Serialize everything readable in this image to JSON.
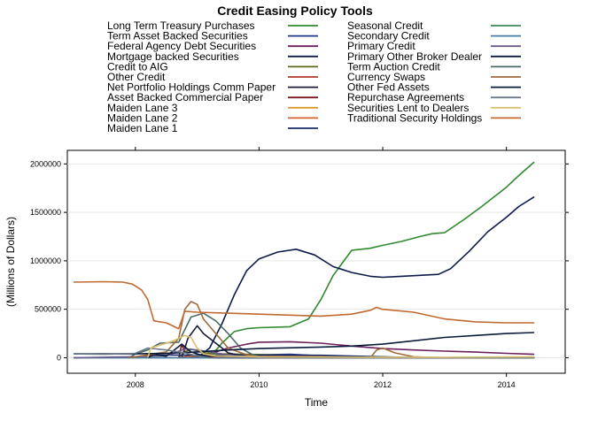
{
  "chart_data": {
    "type": "line",
    "title": "Credit Easing Policy Tools",
    "xlabel": "Time",
    "ylabel": "(Millions of Dollars)",
    "xlim": [
      2006.9,
      2014.95
    ],
    "ylim": [
      -160000,
      2140000
    ],
    "x_ticks": [
      2008,
      2010,
      2012,
      2014
    ],
    "x_tick_labels": [
      "2008",
      "2010",
      "2012",
      "2014"
    ],
    "y_ticks": [
      0,
      500000,
      1000000,
      1500000,
      2000000
    ],
    "y_tick_labels": [
      "0",
      "500000",
      "1000000",
      "1500000",
      "2000000"
    ],
    "grid": true,
    "legend_position": "top",
    "series": [
      {
        "name": "Long Term Treasury Purchases",
        "color": "#2f8a2f",
        "points": [
          [
            2009.2,
            0
          ],
          [
            2009.4,
            150000
          ],
          [
            2009.6,
            270000
          ],
          [
            2009.8,
            300000
          ],
          [
            2010.0,
            310000
          ],
          [
            2010.5,
            320000
          ],
          [
            2010.8,
            400000
          ],
          [
            2011.0,
            600000
          ],
          [
            2011.2,
            850000
          ],
          [
            2011.5,
            1110000
          ],
          [
            2011.8,
            1130000
          ],
          [
            2012.0,
            1160000
          ],
          [
            2012.3,
            1200000
          ],
          [
            2012.6,
            1250000
          ],
          [
            2012.8,
            1280000
          ],
          [
            2013.0,
            1290000
          ],
          [
            2013.3,
            1420000
          ],
          [
            2013.6,
            1560000
          ],
          [
            2014.0,
            1760000
          ],
          [
            2014.2,
            1880000
          ],
          [
            2014.45,
            2020000
          ]
        ]
      },
      {
        "name": "Term Asset Backed Securities",
        "color": "#1f3a8a",
        "points": [
          [
            2009.25,
            0
          ],
          [
            2009.5,
            15000
          ],
          [
            2010.0,
            30000
          ],
          [
            2010.5,
            35000
          ],
          [
            2011.0,
            20000
          ],
          [
            2011.5,
            10000
          ],
          [
            2012.0,
            5000
          ],
          [
            2013.0,
            1000
          ],
          [
            2014.45,
            0
          ]
        ]
      },
      {
        "name": "Federal Agency Debt Securities",
        "color": "#6b1f5e",
        "points": [
          [
            2008.9,
            0
          ],
          [
            2009.2,
            40000
          ],
          [
            2009.5,
            100000
          ],
          [
            2009.8,
            140000
          ],
          [
            2010.0,
            160000
          ],
          [
            2010.5,
            165000
          ],
          [
            2011.0,
            150000
          ],
          [
            2011.5,
            120000
          ],
          [
            2012.0,
            95000
          ],
          [
            2012.5,
            80000
          ],
          [
            2013.0,
            68000
          ],
          [
            2013.5,
            58000
          ],
          [
            2014.0,
            45000
          ],
          [
            2014.45,
            35000
          ]
        ]
      },
      {
        "name": "Mortgage backed Securities",
        "color": "#0d1a4a",
        "points": [
          [
            2009.0,
            0
          ],
          [
            2009.2,
            100000
          ],
          [
            2009.4,
            350000
          ],
          [
            2009.6,
            650000
          ],
          [
            2009.8,
            900000
          ],
          [
            2010.0,
            1020000
          ],
          [
            2010.3,
            1090000
          ],
          [
            2010.6,
            1120000
          ],
          [
            2010.9,
            1060000
          ],
          [
            2011.2,
            940000
          ],
          [
            2011.5,
            880000
          ],
          [
            2011.8,
            840000
          ],
          [
            2012.0,
            830000
          ],
          [
            2012.3,
            840000
          ],
          [
            2012.6,
            850000
          ],
          [
            2012.9,
            860000
          ],
          [
            2013.1,
            920000
          ],
          [
            2013.4,
            1100000
          ],
          [
            2013.7,
            1300000
          ],
          [
            2014.0,
            1450000
          ],
          [
            2014.2,
            1560000
          ],
          [
            2014.45,
            1660000
          ]
        ]
      },
      {
        "name": "Credit to AIG",
        "color": "#5a6b1f",
        "points": [
          [
            2008.7,
            0
          ],
          [
            2008.8,
            60000
          ],
          [
            2008.9,
            90000
          ],
          [
            2009.1,
            50000
          ],
          [
            2009.4,
            40000
          ],
          [
            2009.8,
            35000
          ],
          [
            2010.2,
            30000
          ],
          [
            2010.8,
            20000
          ],
          [
            2011.0,
            0
          ],
          [
            2014.45,
            0
          ]
        ]
      },
      {
        "name": "Other Credit",
        "color": "#b03a2a",
        "points": [
          [
            2008.75,
            0
          ],
          [
            2008.85,
            20000
          ],
          [
            2009.0,
            15000
          ],
          [
            2009.3,
            0
          ],
          [
            2014.45,
            0
          ]
        ]
      },
      {
        "name": "Net Portfolio Holdings Comm Paper",
        "color": "#1a1a3a",
        "points": [
          [
            2008.75,
            0
          ],
          [
            2008.85,
            200000
          ],
          [
            2009.0,
            330000
          ],
          [
            2009.1,
            250000
          ],
          [
            2009.3,
            150000
          ],
          [
            2009.5,
            50000
          ],
          [
            2009.8,
            10000
          ],
          [
            2010.0,
            0
          ],
          [
            2014.45,
            0
          ]
        ]
      },
      {
        "name": "Asset Backed Commercial Paper",
        "color": "#7a1a1a",
        "points": [
          [
            2008.7,
            0
          ],
          [
            2008.75,
            140000
          ],
          [
            2008.8,
            60000
          ],
          [
            2008.9,
            20000
          ],
          [
            2009.2,
            10000
          ],
          [
            2009.5,
            0
          ],
          [
            2014.45,
            0
          ]
        ]
      },
      {
        "name": "Maiden Lane 3",
        "color": "#d89a2a",
        "points": [
          [
            2008.85,
            0
          ],
          [
            2008.9,
            25000
          ],
          [
            2009.3,
            23000
          ],
          [
            2010.0,
            22000
          ],
          [
            2011.0,
            20000
          ],
          [
            2012.0,
            8000
          ],
          [
            2012.5,
            0
          ],
          [
            2014.45,
            0
          ]
        ]
      },
      {
        "name": "Maiden Lane 2",
        "color": "#d4622a",
        "points": [
          [
            2008.85,
            0
          ],
          [
            2008.9,
            20000
          ],
          [
            2009.5,
            17000
          ],
          [
            2010.5,
            15000
          ],
          [
            2011.5,
            10000
          ],
          [
            2012.0,
            3000
          ],
          [
            2012.3,
            0
          ],
          [
            2014.45,
            0
          ]
        ]
      },
      {
        "name": "Maiden Lane 1",
        "color": "#1a2a6a",
        "points": [
          [
            2008.2,
            0
          ],
          [
            2008.25,
            29000
          ],
          [
            2009.0,
            27000
          ],
          [
            2010.0,
            27000
          ],
          [
            2011.0,
            25000
          ],
          [
            2012.0,
            10000
          ],
          [
            2012.5,
            1500
          ],
          [
            2014.45,
            1500
          ]
        ]
      },
      {
        "name": "Seasonal Credit",
        "color": "#3a8a5a",
        "points": [
          [
            2007.0,
            0
          ],
          [
            2014.45,
            0
          ]
        ]
      },
      {
        "name": "Secondary Credit",
        "color": "#4a7aa8",
        "points": [
          [
            2007.0,
            0
          ],
          [
            2014.45,
            0
          ]
        ]
      },
      {
        "name": "Primary Credit",
        "color": "#6a5a8a",
        "points": [
          [
            2007.0,
            0
          ],
          [
            2007.9,
            10000
          ],
          [
            2008.2,
            15000
          ],
          [
            2008.5,
            20000
          ],
          [
            2008.8,
            90000
          ],
          [
            2009.0,
            80000
          ],
          [
            2009.3,
            50000
          ],
          [
            2009.6,
            20000
          ],
          [
            2010.0,
            5000
          ],
          [
            2010.3,
            0
          ],
          [
            2014.45,
            0
          ]
        ]
      },
      {
        "name": "Primary Other Broker Dealer",
        "color": "#0a1a3a",
        "points": [
          [
            2008.2,
            0
          ],
          [
            2008.3,
            35000
          ],
          [
            2008.5,
            15000
          ],
          [
            2008.75,
            140000
          ],
          [
            2008.9,
            60000
          ],
          [
            2009.1,
            20000
          ],
          [
            2009.3,
            0
          ],
          [
            2014.45,
            0
          ]
        ]
      },
      {
        "name": "Term Auction Credit",
        "color": "#4a6a6a",
        "points": [
          [
            2007.9,
            0
          ],
          [
            2008.0,
            40000
          ],
          [
            2008.2,
            80000
          ],
          [
            2008.4,
            150000
          ],
          [
            2008.7,
            160000
          ],
          [
            2008.9,
            420000
          ],
          [
            2009.1,
            460000
          ],
          [
            2009.3,
            380000
          ],
          [
            2009.5,
            250000
          ],
          [
            2009.7,
            100000
          ],
          [
            2009.9,
            30000
          ],
          [
            2010.1,
            0
          ],
          [
            2014.45,
            0
          ]
        ]
      },
      {
        "name": "Currency Swaps",
        "color": "#a06a3a",
        "points": [
          [
            2007.9,
            0
          ],
          [
            2008.1,
            20000
          ],
          [
            2008.5,
            60000
          ],
          [
            2008.7,
            200000
          ],
          [
            2008.8,
            500000
          ],
          [
            2008.9,
            580000
          ],
          [
            2009.0,
            550000
          ],
          [
            2009.1,
            400000
          ],
          [
            2009.3,
            250000
          ],
          [
            2009.5,
            100000
          ],
          [
            2009.8,
            30000
          ],
          [
            2010.1,
            0
          ],
          [
            2010.4,
            1000
          ],
          [
            2011.0,
            0
          ],
          [
            2011.8,
            1000
          ],
          [
            2011.9,
            80000
          ],
          [
            2012.0,
            100000
          ],
          [
            2012.2,
            50000
          ],
          [
            2012.5,
            10000
          ],
          [
            2013.0,
            0
          ],
          [
            2014.45,
            0
          ]
        ]
      },
      {
        "name": "Other Fed Assets",
        "color": "#0a1a3a",
        "points": [
          [
            2007.0,
            40000
          ],
          [
            2008.0,
            40000
          ],
          [
            2008.5,
            45000
          ],
          [
            2009.0,
            60000
          ],
          [
            2009.5,
            80000
          ],
          [
            2010.0,
            95000
          ],
          [
            2011.0,
            110000
          ],
          [
            2011.5,
            120000
          ],
          [
            2012.0,
            140000
          ],
          [
            2012.5,
            175000
          ],
          [
            2013.0,
            210000
          ],
          [
            2013.5,
            230000
          ],
          [
            2014.0,
            250000
          ],
          [
            2014.45,
            260000
          ]
        ]
      },
      {
        "name": "Repurchase Agreements",
        "color": "#6a7a8a",
        "points": [
          [
            2007.0,
            40000
          ],
          [
            2007.5,
            35000
          ],
          [
            2008.0,
            45000
          ],
          [
            2008.2,
            100000
          ],
          [
            2008.5,
            80000
          ],
          [
            2008.8,
            50000
          ],
          [
            2009.0,
            20000
          ],
          [
            2009.2,
            0
          ],
          [
            2014.45,
            0
          ]
        ]
      },
      {
        "name": "Securities Lent to Dealers",
        "color": "#d8c070",
        "points": [
          [
            2008.2,
            0
          ],
          [
            2008.25,
            100000
          ],
          [
            2008.4,
            130000
          ],
          [
            2008.6,
            170000
          ],
          [
            2008.8,
            230000
          ],
          [
            2008.9,
            210000
          ],
          [
            2009.0,
            100000
          ],
          [
            2009.1,
            40000
          ],
          [
            2009.3,
            20000
          ],
          [
            2009.6,
            15000
          ],
          [
            2010.0,
            10000
          ],
          [
            2011.0,
            8000
          ],
          [
            2012.0,
            5000
          ],
          [
            2013.0,
            5000
          ],
          [
            2014.45,
            10000
          ]
        ]
      },
      {
        "name": "Traditional Security Holdings",
        "color": "#c06a30",
        "points": [
          [
            2007.0,
            780000
          ],
          [
            2007.5,
            785000
          ],
          [
            2007.8,
            780000
          ],
          [
            2007.95,
            760000
          ],
          [
            2008.1,
            700000
          ],
          [
            2008.2,
            600000
          ],
          [
            2008.3,
            380000
          ],
          [
            2008.5,
            360000
          ],
          [
            2008.7,
            300000
          ],
          [
            2008.8,
            480000
          ],
          [
            2009.0,
            470000
          ],
          [
            2009.5,
            460000
          ],
          [
            2010.0,
            450000
          ],
          [
            2010.5,
            440000
          ],
          [
            2011.0,
            430000
          ],
          [
            2011.5,
            450000
          ],
          [
            2011.8,
            490000
          ],
          [
            2011.9,
            520000
          ],
          [
            2012.0,
            500000
          ],
          [
            2012.5,
            470000
          ],
          [
            2013.0,
            400000
          ],
          [
            2013.5,
            370000
          ],
          [
            2014.0,
            360000
          ],
          [
            2014.45,
            360000
          ]
        ]
      }
    ]
  }
}
